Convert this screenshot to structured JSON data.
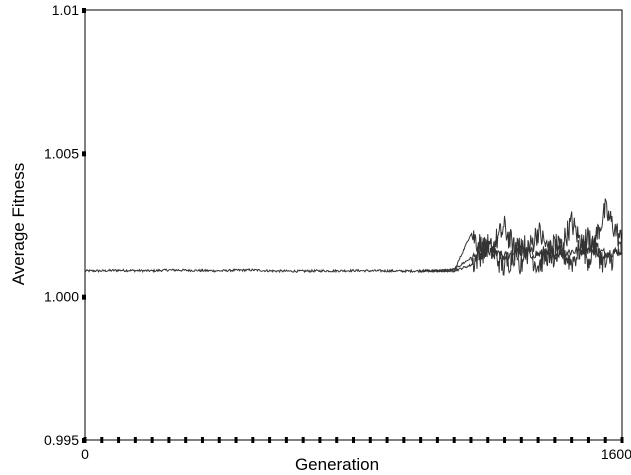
{
  "chart_data": {
    "type": "line",
    "title": "",
    "xlabel": "Generation",
    "ylabel": "Average Fitness",
    "xlim": [
      0,
      1600
    ],
    "ylim": [
      0.995,
      1.01
    ],
    "x_ticks": [
      {
        "value": 0,
        "label": "0"
      },
      {
        "value": 1600,
        "label": "1600"
      }
    ],
    "y_ticks": [
      {
        "value": 0.995,
        "label": "0.995"
      },
      {
        "value": 1.0,
        "label": "1.000"
      },
      {
        "value": 1.005,
        "label": "1.005"
      },
      {
        "value": 1.01,
        "label": "1.01"
      }
    ],
    "x_minor_tick_step": 50,
    "grid": false,
    "legend": "none",
    "line_color": "#333333",
    "series": [
      {
        "x": [
          0,
          50,
          100,
          150,
          200,
          250,
          300,
          350,
          400,
          450,
          500,
          550,
          600,
          650,
          700,
          750,
          800,
          850,
          900,
          950,
          1000,
          1050,
          1100,
          1150,
          1200,
          1250,
          1300,
          1350,
          1400,
          1450,
          1500,
          1550,
          1600
        ],
        "values": [
          1.0009,
          1.0009,
          1.00092,
          1.00091,
          1.0009,
          1.00093,
          1.00092,
          1.00091,
          1.0009,
          1.00092,
          1.00093,
          1.0009,
          1.00089,
          1.00089,
          1.0009,
          1.0009,
          1.00091,
          1.0009,
          1.0009,
          1.00089,
          1.0009,
          1.0009,
          1.00095,
          1.00135,
          1.00155,
          1.0014,
          1.00162,
          1.00148,
          1.0015,
          1.00158,
          1.00165,
          1.00152,
          1.0016
        ]
      },
      {
        "x": [
          1000,
          1050,
          1100,
          1150,
          1200,
          1250,
          1300,
          1350,
          1400,
          1450,
          1500,
          1550,
          1600
        ],
        "values": [
          1.0009,
          1.0009,
          1.0009,
          1.0022,
          1.0015,
          1.0024,
          1.0011,
          1.0023,
          1.0012,
          1.0026,
          1.0013,
          1.003,
          1.0019
        ]
      },
      {
        "x": [
          1000,
          1050,
          1100,
          1150,
          1200,
          1250,
          1300,
          1350,
          1400,
          1450,
          1500,
          1550,
          1600
        ],
        "values": [
          1.0009,
          1.0009,
          1.0009,
          1.0011,
          1.0018,
          1.001,
          1.0019,
          1.0011,
          1.0018,
          1.0012,
          1.0021,
          1.0011,
          1.0017
        ]
      }
    ]
  }
}
